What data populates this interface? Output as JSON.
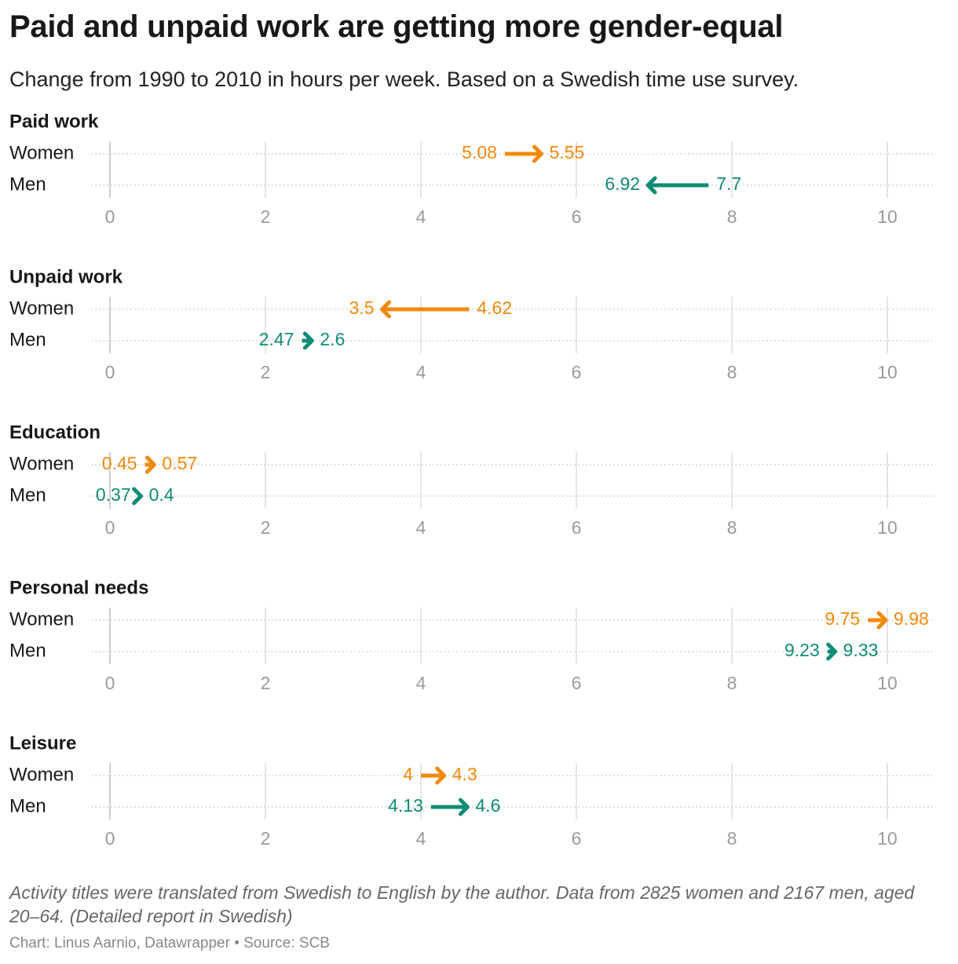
{
  "header": {
    "title": "Paid and unpaid work are getting more gender-equal",
    "subtitle": "Change from 1990 to 2010 in hours per week. Based on a Swedish time use survey."
  },
  "footer": {
    "notes": "Activity titles were translated from Swedish to English by the author. Data from 2825 women and 2167 men, aged 20–64. (Detailed report in Swedish)",
    "byline": "Chart: Linus Aarnio, Datawrapper • Source: SCB"
  },
  "colors": {
    "women": "#f18a0c",
    "men": "#0f8c74",
    "grid": "#dcdcdc",
    "tick": "#9a9a9a"
  },
  "chart_data": {
    "type": "arrow",
    "x_range": [
      0,
      10
    ],
    "x_ticks": [
      0,
      2,
      4,
      6,
      8,
      10
    ],
    "row_labels": [
      "Women",
      "Men"
    ],
    "from_year": 1990,
    "to_year": 2010,
    "panels": [
      {
        "title": "Paid work",
        "rows": [
          {
            "label": "Women",
            "from": 5.08,
            "to": 5.55,
            "from_label": "5.08",
            "to_label": "5.55"
          },
          {
            "label": "Men",
            "from": 7.7,
            "to": 6.92,
            "from_label": "7.7",
            "to_label": "6.92"
          }
        ]
      },
      {
        "title": "Unpaid work",
        "rows": [
          {
            "label": "Women",
            "from": 4.62,
            "to": 3.5,
            "from_label": "4.62",
            "to_label": "3.5"
          },
          {
            "label": "Men",
            "from": 2.47,
            "to": 2.6,
            "from_label": "2.47",
            "to_label": "2.6"
          }
        ]
      },
      {
        "title": "Education",
        "rows": [
          {
            "label": "Women",
            "from": 0.45,
            "to": 0.57,
            "from_label": "0.45",
            "to_label": "0.57"
          },
          {
            "label": "Men",
            "from": 0.37,
            "to": 0.4,
            "from_label": "0.37",
            "to_label": "0.4"
          }
        ]
      },
      {
        "title": "Personal needs",
        "rows": [
          {
            "label": "Women",
            "from": 9.75,
            "to": 9.98,
            "from_label": "9.75",
            "to_label": "9.98"
          },
          {
            "label": "Men",
            "from": 9.23,
            "to": 9.33,
            "from_label": "9.23",
            "to_label": "9.33"
          }
        ]
      },
      {
        "title": "Leisure",
        "rows": [
          {
            "label": "Women",
            "from": 4,
            "to": 4.3,
            "from_label": "4",
            "to_label": "4.3"
          },
          {
            "label": "Men",
            "from": 4.13,
            "to": 4.6,
            "from_label": "4.13",
            "to_label": "4.6"
          }
        ]
      }
    ]
  }
}
